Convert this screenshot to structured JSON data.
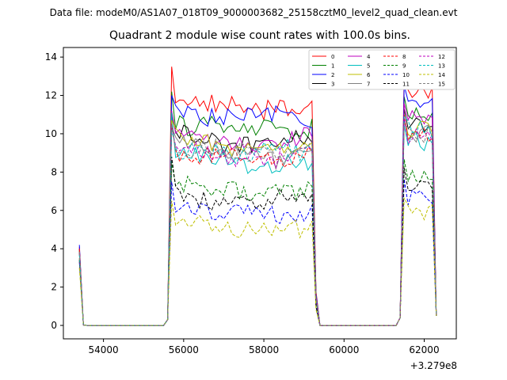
{
  "figure": {
    "suptitle": "Data file: modeM0/AS1A07_018T09_9000003682_25158cztM0_level2_quad_clean.evt"
  },
  "chart_data": {
    "type": "line",
    "title": "Quadrant 2 module wise count rates with 100.0s bins.",
    "xlabel": "",
    "ylabel": "",
    "x_offset_label": "+3.279e8",
    "x_offset": 327900000,
    "xlim": [
      53000,
      62800
    ],
    "ylim": [
      -0.7,
      14.5
    ],
    "xticks": [
      54000,
      56000,
      58000,
      60000,
      62000
    ],
    "yticks": [
      0,
      2,
      4,
      6,
      8,
      10,
      12,
      14
    ],
    "grid": false,
    "legend_position": "top-right",
    "legend_columns": 4,
    "segments": [
      {
        "start": 53400,
        "end": 53500,
        "drop_to": 55500
      },
      {
        "start": 55600,
        "end": 59300,
        "drop_to": 61300
      },
      {
        "start": 61400,
        "end": 62300
      }
    ],
    "series": [
      {
        "name": "0",
        "color": "#ff0000",
        "dash": "solid",
        "start": 4.1,
        "plateau1": 11.9,
        "peak1": 13.5,
        "plateau2": 12.3
      },
      {
        "name": "1",
        "color": "#008000",
        "dash": "solid",
        "start": 4.0,
        "plateau1": 10.7,
        "peak1": 12.2,
        "plateau2": 11.0
      },
      {
        "name": "2",
        "color": "#0000ff",
        "dash": "solid",
        "start": 4.2,
        "plateau1": 11.2,
        "peak1": 12.0,
        "plateau2": 11.8
      },
      {
        "name": "3",
        "color": "#000000",
        "dash": "solid",
        "start": 3.9,
        "plateau1": 10.0,
        "peak1": 11.0,
        "plateau2": 10.4
      },
      {
        "name": "4",
        "color": "#bf00bf",
        "dash": "solid",
        "start": 4.0,
        "plateau1": 10.1,
        "peak1": 11.2,
        "plateau2": 10.9
      },
      {
        "name": "5",
        "color": "#00bfbf",
        "dash": "solid",
        "start": 3.8,
        "plateau1": 9.0,
        "peak1": 11.1,
        "plateau2": 9.6
      },
      {
        "name": "6",
        "color": "#bfbf00",
        "dash": "solid",
        "start": 3.9,
        "plateau1": 9.8,
        "peak1": 10.7,
        "plateau2": 10.2
      },
      {
        "name": "7",
        "color": "#808080",
        "dash": "solid",
        "start": 3.9,
        "plateau1": 9.5,
        "peak1": 10.4,
        "plateau2": 10.0
      },
      {
        "name": "8",
        "color": "#ff0000",
        "dash": "dashed",
        "start": 4.0,
        "plateau1": 9.3,
        "peak1": 10.5,
        "plateau2": 10.0
      },
      {
        "name": "9",
        "color": "#008000",
        "dash": "dashed",
        "start": 3.5,
        "plateau1": 7.6,
        "peak1": 8.5,
        "plateau2": 7.9
      },
      {
        "name": "10",
        "color": "#0000ff",
        "dash": "dashed",
        "start": 3.3,
        "plateau1": 6.4,
        "peak1": 7.5,
        "plateau2": 6.7
      },
      {
        "name": "11",
        "color": "#000000",
        "dash": "dashed",
        "start": 3.4,
        "plateau1": 7.0,
        "peak1": 8.8,
        "plateau2": 7.5
      },
      {
        "name": "12",
        "color": "#bf00bf",
        "dash": "dashed",
        "start": 3.8,
        "plateau1": 9.3,
        "peak1": 10.3,
        "plateau2": 10.0
      },
      {
        "name": "13",
        "color": "#00bfbf",
        "dash": "dashed",
        "start": 3.7,
        "plateau1": 9.4,
        "peak1": 10.2,
        "plateau2": 10.2
      },
      {
        "name": "14",
        "color": "#bfbf00",
        "dash": "dashed",
        "start": 3.0,
        "plateau1": 5.5,
        "peak1": 6.5,
        "plateau2": 5.8
      },
      {
        "name": "15",
        "color": "#808080",
        "dash": "dashed",
        "start": 3.8,
        "plateau1": 9.6,
        "peak1": 10.5,
        "plateau2": 9.9
      }
    ]
  }
}
